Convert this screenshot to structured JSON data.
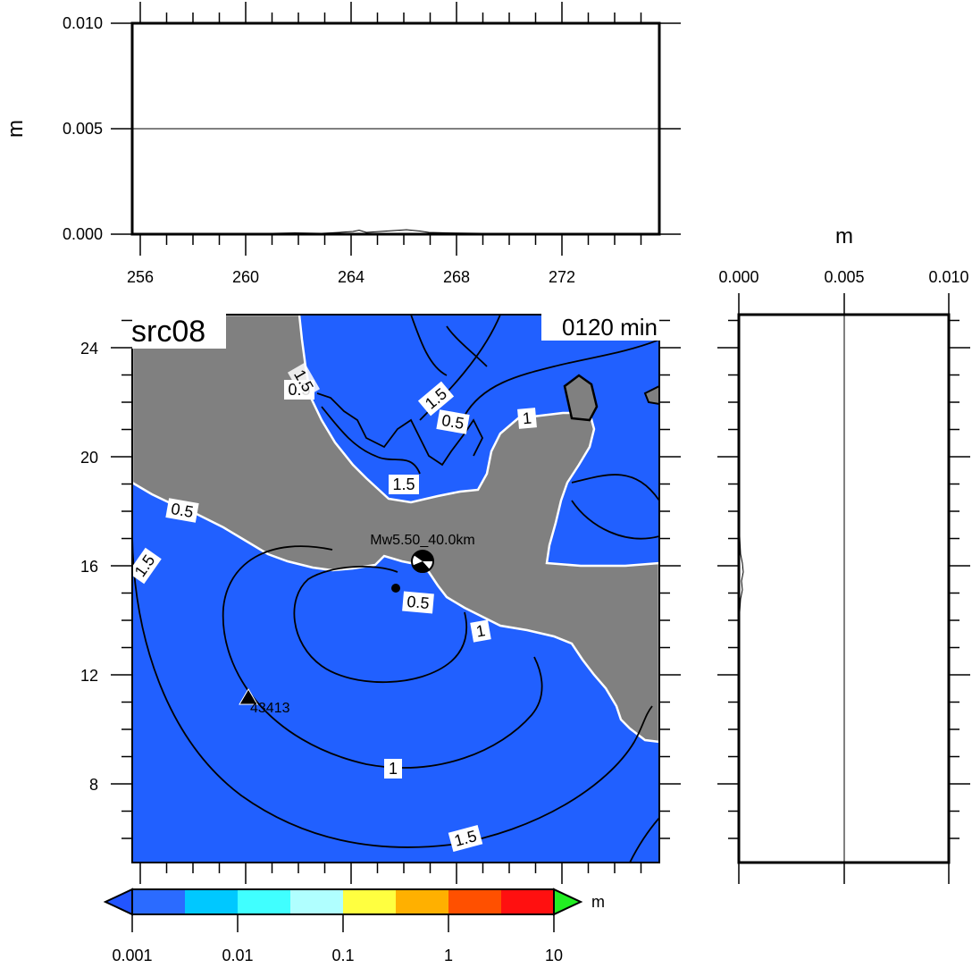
{
  "source_label": "src08",
  "time_label": "0120 min",
  "mechanism_label": "Mw5.50_40.0km",
  "station_label": "43413",
  "top_panel": {
    "y_unit": "m",
    "y_ticks": [
      "0.000",
      "0.005",
      "0.010"
    ],
    "x_ticks": [
      "256",
      "260",
      "264",
      "268",
      "272"
    ]
  },
  "right_panel": {
    "x_unit": "m",
    "x_ticks": [
      "0.000",
      "0.005",
      "0.010"
    ]
  },
  "map": {
    "lat_ticks": [
      "24",
      "20",
      "16",
      "12",
      "8"
    ],
    "contour_labels": [
      "0.5",
      "0.5",
      "0.5",
      "0.5",
      "1",
      "1",
      "1",
      "1.5",
      "1.5",
      "1.5",
      "1.5",
      "1.5"
    ]
  },
  "colorbar": {
    "unit": "m",
    "tick_labels": [
      "0.001",
      "0.01",
      "0.1",
      "1",
      "10"
    ],
    "colors": [
      "#2b6bff",
      "#00c8ff",
      "#40ffff",
      "#b0ffff",
      "#ffff40",
      "#ffb000",
      "#ff5000",
      "#ff1010"
    ],
    "low_color": "#2255ff",
    "high_color": "#22ee22"
  },
  "colors": {
    "ocean": "#2160ff",
    "land": "#808080",
    "coast": "#ffffff",
    "contour": "#000000"
  }
}
